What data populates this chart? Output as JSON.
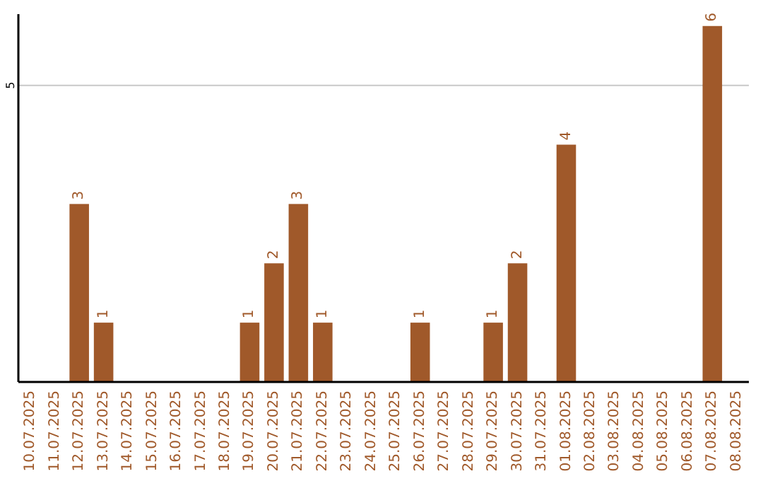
{
  "chart_data": {
    "type": "bar",
    "categories": [
      "10.07.2025",
      "11.07.2025",
      "12.07.2025",
      "13.07.2025",
      "14.07.2025",
      "15.07.2025",
      "16.07.2025",
      "17.07.2025",
      "18.07.2025",
      "19.07.2025",
      "20.07.2025",
      "21.07.2025",
      "22.07.2025",
      "23.07.2025",
      "24.07.2025",
      "25.07.2025",
      "26.07.2025",
      "27.07.2025",
      "28.07.2025",
      "29.07.2025",
      "30.07.2025",
      "31.07.2025",
      "01.08.2025",
      "02.08.2025",
      "03.08.2025",
      "04.08.2025",
      "05.08.2025",
      "06.08.2025",
      "07.08.2025",
      "08.08.2025"
    ],
    "values": [
      0,
      0,
      3,
      1,
      0,
      0,
      0,
      0,
      0,
      1,
      2,
      3,
      1,
      0,
      0,
      0,
      1,
      0,
      0,
      1,
      2,
      0,
      4,
      0,
      0,
      0,
      0,
      0,
      6,
      0
    ],
    "value_labels": [
      null,
      null,
      "3",
      "1",
      null,
      null,
      null,
      null,
      null,
      "1",
      "2",
      "3",
      "1",
      null,
      null,
      null,
      "1",
      null,
      null,
      "1",
      "2",
      null,
      "4",
      null,
      null,
      null,
      null,
      null,
      "6",
      null
    ],
    "color": "#a0592a",
    "ylim": [
      0,
      6.2
    ],
    "yticks": [
      5
    ],
    "grid": "y"
  }
}
